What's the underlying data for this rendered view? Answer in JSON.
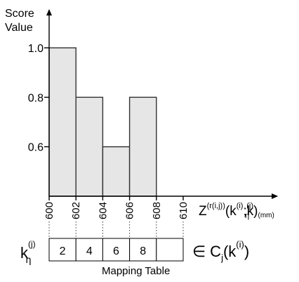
{
  "chart_data": {
    "type": "bar",
    "title": "",
    "ylabel_line1": "Score",
    "ylabel_line2": "Value",
    "xlabel": {
      "base": "Z",
      "sup": "(r(i,j))",
      "arg_open": "(k",
      "arg_sup_i": "(i)",
      "arg_sep": ";k",
      "arg_sub_eta": "η",
      "arg_sup_j": "(j)",
      "arg_close": ")",
      "unit": "(mm)"
    },
    "bins": [
      {
        "x0": 600,
        "x1": 602,
        "value": 1.0
      },
      {
        "x0": 602,
        "x1": 604,
        "value": 0.8
      },
      {
        "x0": 604,
        "x1": 606,
        "value": 0.6
      },
      {
        "x0": 606,
        "x1": 608,
        "value": 0.8
      }
    ],
    "xticks": [
      "600",
      "602",
      "604",
      "606",
      "608",
      "610"
    ],
    "yticks": [
      "0.6",
      "0.8",
      "1.0"
    ],
    "ytick_values": [
      0.6,
      0.8,
      1.0
    ],
    "xlim": [
      600,
      610
    ],
    "ylim": [
      0.4,
      1.0
    ],
    "grid": false,
    "bar_fill": "#e6e6e6",
    "edge_color": "#333333"
  },
  "mapping_table": {
    "row_label_base": "k",
    "row_label_sup": "(j)",
    "row_label_sub": "η",
    "cells": [
      "2",
      "4",
      "6",
      "8",
      ""
    ],
    "caption": "Mapping Table",
    "set_symbol": "∈",
    "set_base": "C",
    "set_sub": "j",
    "set_arg_open": "(k",
    "set_arg_sup": "(i)",
    "set_arg_close": ")"
  }
}
